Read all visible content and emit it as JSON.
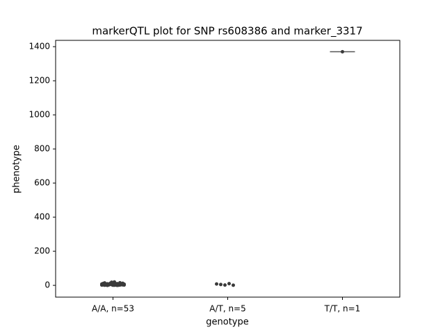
{
  "chart_data": {
    "type": "strip",
    "title": "markerQTL plot for SNP rs608386 and marker_3317",
    "x_label": "genotype",
    "y_label": "phenotype",
    "categories": [
      "A/A, n=53",
      "A/T, n=5",
      "T/T, n=1"
    ],
    "points": [
      [
        2,
        5,
        8,
        1,
        3,
        12,
        6,
        0,
        4,
        9,
        15,
        2,
        7,
        3,
        1,
        10,
        5,
        6,
        2,
        8,
        20,
        4,
        3,
        11,
        1,
        6,
        9,
        2,
        5,
        14,
        3,
        7,
        0,
        4,
        8,
        2,
        12,
        5,
        1,
        6,
        3,
        9,
        18,
        2,
        4,
        7,
        1,
        5,
        10,
        3,
        6,
        2,
        8
      ],
      [
        8,
        5,
        2,
        10,
        1
      ],
      [
        1370
      ]
    ],
    "color": "#3a3a3a",
    "ylim": [
      -69,
      1437
    ],
    "yticks": [
      0,
      200,
      400,
      600,
      800,
      1000,
      1200,
      1400
    ]
  }
}
